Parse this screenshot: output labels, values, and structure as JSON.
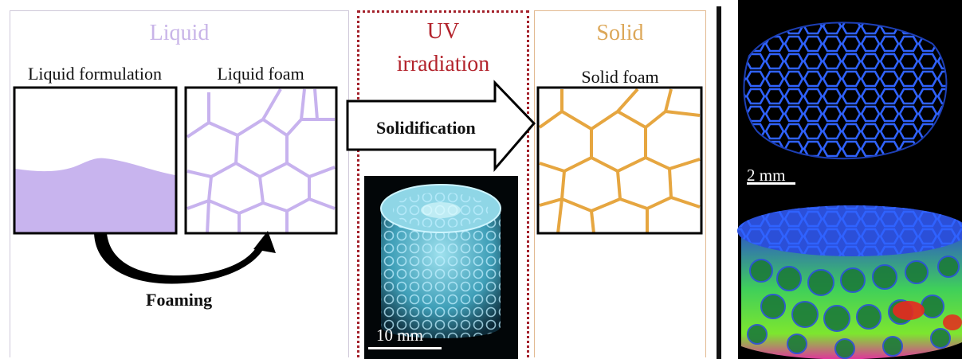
{
  "liquid_section": {
    "title": "Liquid",
    "liquid_formulation_label": "Liquid formulation",
    "liquid_foam_label": "Liquid foam",
    "foaming_label": "Foaming"
  },
  "uv_section": {
    "title_line1": "UV",
    "title_line2": "irradiation",
    "solidification_label": "Solidification",
    "scale_bar_label": "10 mm"
  },
  "solid_section": {
    "title": "Solid",
    "solid_foam_label": "Solid foam"
  },
  "tomography": {
    "scale_bar_label": "2 mm"
  },
  "colors": {
    "liquid": "#c8b4e8",
    "uv": "#b3232c",
    "solid": "#dca758",
    "foam_lines": "#c7b2ee",
    "solid_lines": "#e6a640"
  }
}
